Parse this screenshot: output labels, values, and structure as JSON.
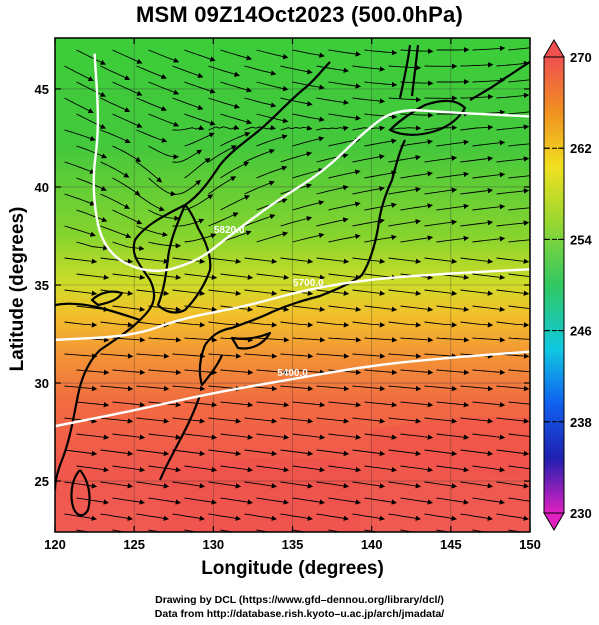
{
  "title": "MSM 09Z14Oct2023 (500.0hPa)",
  "axes": {
    "xlabel": "Longitude (degrees)",
    "ylabel": "Latitude  (degrees)",
    "x_ticks": [
      "120",
      "125",
      "130",
      "135",
      "140",
      "145",
      "150"
    ],
    "y_ticks": [
      "25",
      "30",
      "35",
      "40",
      "45"
    ],
    "xlim": [
      120,
      150
    ],
    "ylim": [
      22.4,
      47.6
    ]
  },
  "colorbar": {
    "labels": [
      "270",
      "262",
      "254",
      "246",
      "238",
      "230"
    ],
    "range": [
      230,
      270
    ],
    "colors": [
      "#e020c0",
      "#2020b0",
      "#1060f0",
      "#10c8e0",
      "#30c860",
      "#9ad830",
      "#f0e020",
      "#f09020",
      "#f05050"
    ]
  },
  "contours": [
    {
      "label": "5400.0",
      "points": [
        [
          120,
          27.8
        ],
        [
          125,
          28.6
        ],
        [
          130,
          29.5
        ],
        [
          135,
          30.2
        ],
        [
          140,
          30.9
        ],
        [
          145,
          31.3
        ],
        [
          150,
          31.6
        ]
      ]
    },
    {
      "label": "5700.0",
      "points": [
        [
          120,
          32.2
        ],
        [
          125,
          32.4
        ],
        [
          128,
          33.3
        ],
        [
          132,
          33.9
        ],
        [
          136,
          34.8
        ],
        [
          140,
          35.3
        ],
        [
          145,
          35.6
        ],
        [
          150,
          35.8
        ]
      ]
    },
    {
      "label": "5820.0",
      "points": [
        [
          122.5,
          46.8
        ],
        [
          122.8,
          43
        ],
        [
          122.3,
          40
        ],
        [
          123,
          36.7
        ],
        [
          126,
          35.5
        ],
        [
          129,
          36.2
        ],
        [
          131,
          37.5
        ],
        [
          134,
          39.3
        ],
        [
          137,
          40.8
        ],
        [
          139.5,
          42.8
        ],
        [
          141.5,
          44.0
        ],
        [
          145,
          43.8
        ],
        [
          150,
          43.6
        ]
      ]
    }
  ],
  "credits": {
    "line1": "Drawing by DCL (https://www.gfd–dennou.org/library/dcl/)",
    "line2": "Data from http://database.rish.kyoto–u.ac.jp/arch/jmadata/"
  }
}
